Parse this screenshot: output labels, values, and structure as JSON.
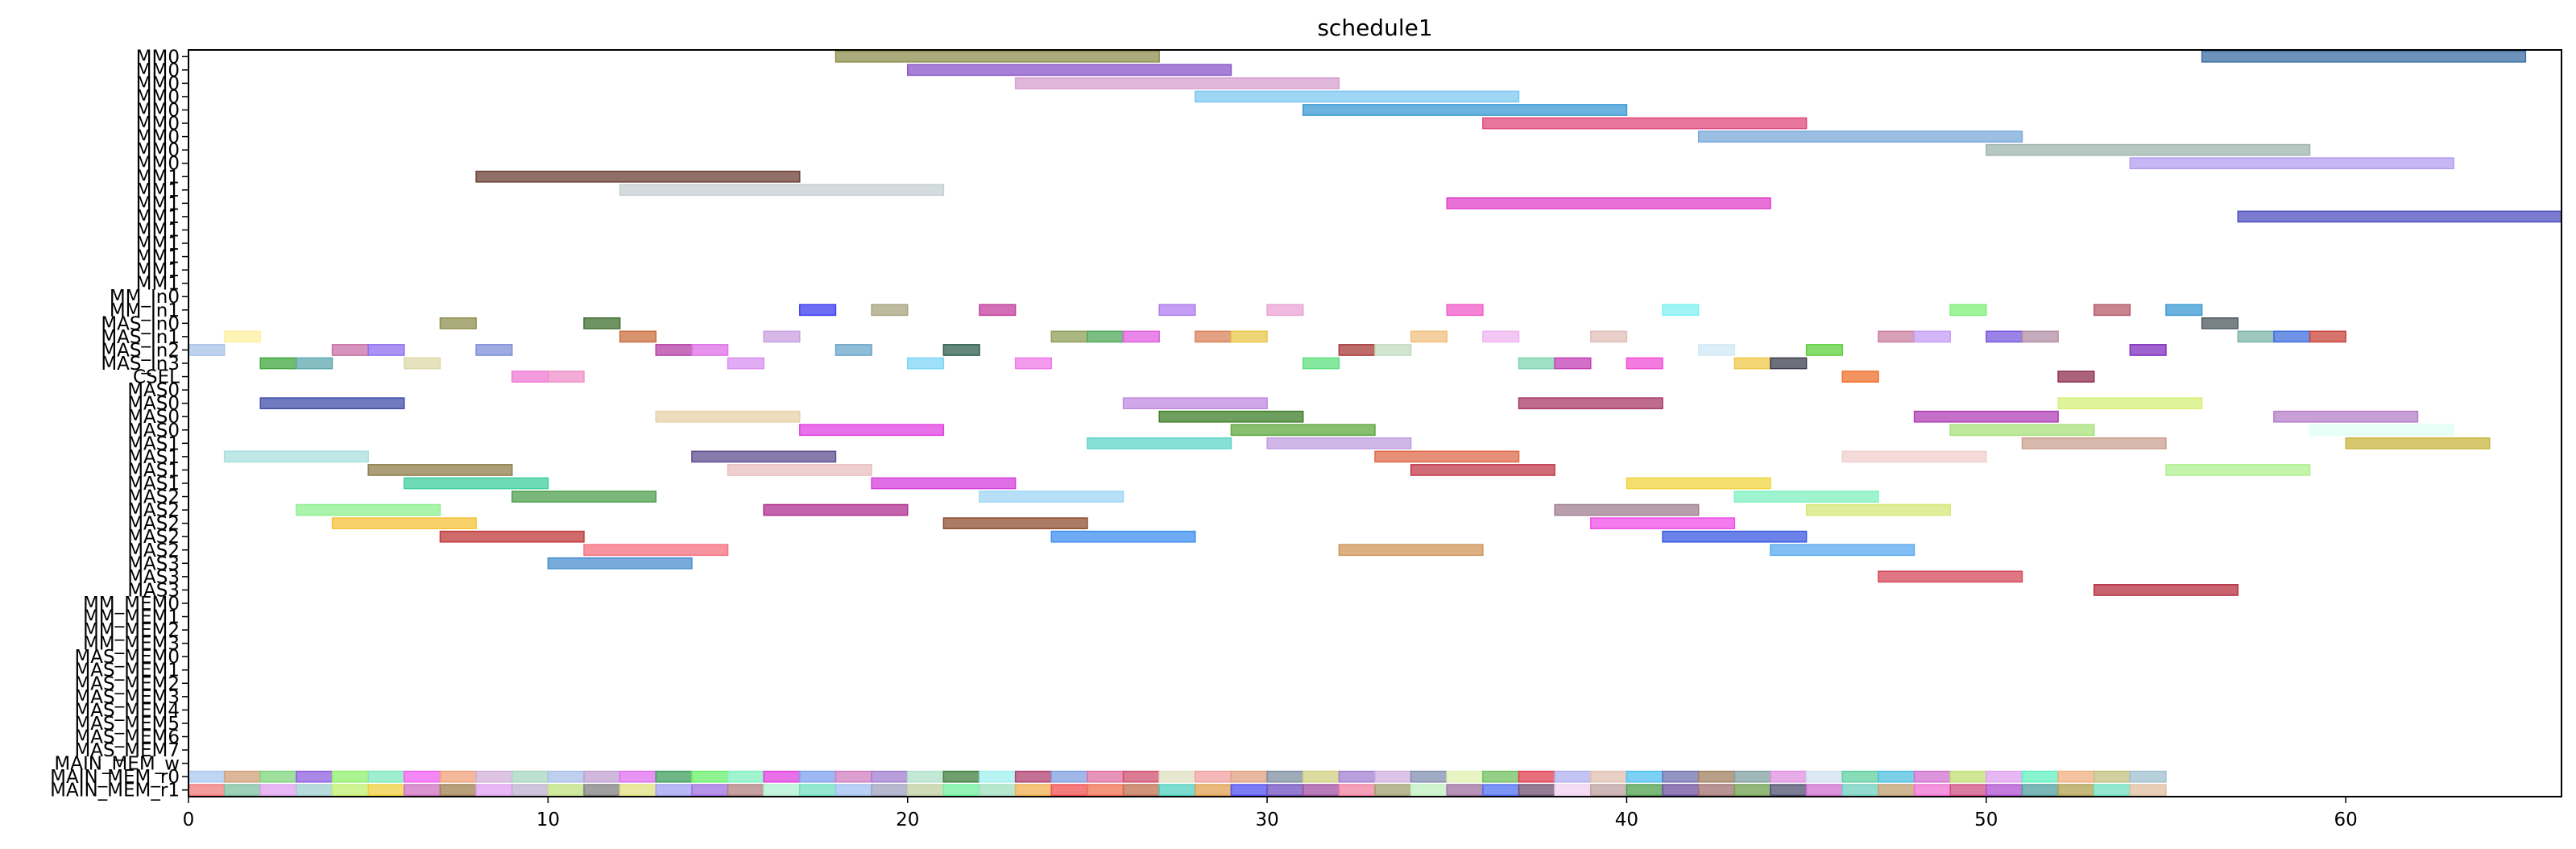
{
  "chart_data": {
    "type": "gantt",
    "title": "schedule1",
    "xlabel": "",
    "ylabel": "",
    "xlim": [
      0,
      66
    ],
    "xticks": [
      0,
      10,
      20,
      30,
      40,
      50,
      60
    ],
    "xtick_labels": [
      "0",
      "10",
      "20",
      "30",
      "40",
      "50",
      "60"
    ],
    "grid": false,
    "legend": "none",
    "rows": [
      "MM0",
      "MM0",
      "MM0",
      "MM0",
      "MM0",
      "MM0",
      "MM0",
      "MM0",
      "MM0",
      "MM1",
      "MM1",
      "MM1",
      "MM1",
      "MM1",
      "MM1",
      "MM1",
      "MM1",
      "MM1",
      "MM_In0",
      "MM_In1",
      "MAS_In0",
      "MAS_In1",
      "MAS_In2",
      "MAS_In3",
      "CSEL",
      "MAS0",
      "MAS0",
      "MAS0",
      "MAS0",
      "MAS1",
      "MAS1",
      "MAS1",
      "MAS1",
      "MAS2",
      "MAS2",
      "MAS2",
      "MAS2",
      "MAS2",
      "MAS3",
      "MAS3",
      "MAS3",
      "MM_MEM0",
      "MM_MEM1",
      "MM_MEM2",
      "MM_MEM3",
      "MAS_MEM0",
      "MAS_MEM1",
      "MAS_MEM2",
      "MAS_MEM3",
      "MAS_MEM4",
      "MAS_MEM5",
      "MAS_MEM6",
      "MAS_MEM7",
      "MAIN_MEM_w",
      "MAIN_MEM_r0",
      "MAIN_MEM_r1"
    ],
    "bars": [
      {
        "row": 0,
        "start": 18,
        "end": 27,
        "color": "#8f8f4f"
      },
      {
        "row": 0,
        "start": 56,
        "end": 65,
        "color": "#3d6fa3"
      },
      {
        "row": 1,
        "start": 20,
        "end": 29,
        "color": "#8a55c9"
      },
      {
        "row": 2,
        "start": 23,
        "end": 32,
        "color": "#d79fd0"
      },
      {
        "row": 3,
        "start": 28,
        "end": 37,
        "color": "#7ec8f0"
      },
      {
        "row": 4,
        "start": 31,
        "end": 40,
        "color": "#3a9ad3"
      },
      {
        "row": 5,
        "start": 36,
        "end": 45,
        "color": "#e04a7d"
      },
      {
        "row": 6,
        "start": 42,
        "end": 51,
        "color": "#7aa8da"
      },
      {
        "row": 7,
        "start": 50,
        "end": 59,
        "color": "#9fb5ad"
      },
      {
        "row": 8,
        "start": 54,
        "end": 63,
        "color": "#b49cf0"
      },
      {
        "row": 9,
        "start": 8,
        "end": 17,
        "color": "#6b3f35"
      },
      {
        "row": 10,
        "start": 12,
        "end": 21,
        "color": "#c5d0d3"
      },
      {
        "row": 11,
        "start": 35,
        "end": 44,
        "color": "#e040c9"
      },
      {
        "row": 12,
        "start": 57,
        "end": 66,
        "color": "#4f4fc0"
      },
      {
        "row": 19,
        "start": 17,
        "end": 18,
        "color": "#3c3cf0"
      },
      {
        "row": 19,
        "start": 19,
        "end": 20,
        "color": "#a7a37f"
      },
      {
        "row": 19,
        "start": 22,
        "end": 23,
        "color": "#c33f9f"
      },
      {
        "row": 19,
        "start": 27,
        "end": 28,
        "color": "#b07cf0"
      },
      {
        "row": 19,
        "start": 30,
        "end": 31,
        "color": "#eca3d6"
      },
      {
        "row": 19,
        "start": 35,
        "end": 36,
        "color": "#f25bc9"
      },
      {
        "row": 19,
        "start": 41,
        "end": 42,
        "color": "#7df2f0"
      },
      {
        "row": 19,
        "start": 49,
        "end": 50,
        "color": "#7ff07a"
      },
      {
        "row": 19,
        "start": 53,
        "end": 54,
        "color": "#b55a6a"
      },
      {
        "row": 19,
        "start": 55,
        "end": 56,
        "color": "#3a9ad3"
      },
      {
        "row": 20,
        "start": 7,
        "end": 8,
        "color": "#8f8f4f"
      },
      {
        "row": 20,
        "start": 11,
        "end": 12,
        "color": "#3f6f2f"
      },
      {
        "row": 20,
        "start": 56,
        "end": 57,
        "color": "#4c5a5f"
      },
      {
        "row": 21,
        "start": 1,
        "end": 2,
        "color": "#fff0a0"
      },
      {
        "row": 21,
        "start": 12,
        "end": 13,
        "color": "#c9703f"
      },
      {
        "row": 21,
        "start": 16,
        "end": 17,
        "color": "#c9a0e0"
      },
      {
        "row": 21,
        "start": 24,
        "end": 25,
        "color": "#8f9f5a"
      },
      {
        "row": 21,
        "start": 25,
        "end": 26,
        "color": "#4fa85a"
      },
      {
        "row": 21,
        "start": 26,
        "end": 27,
        "color": "#e15fe0"
      },
      {
        "row": 21,
        "start": 28,
        "end": 29,
        "color": "#d9835a"
      },
      {
        "row": 21,
        "start": 29,
        "end": 30,
        "color": "#e8c84a"
      },
      {
        "row": 21,
        "start": 34,
        "end": 35,
        "color": "#f0c080"
      },
      {
        "row": 21,
        "start": 36,
        "end": 37,
        "color": "#f0b5f0"
      },
      {
        "row": 21,
        "start": 39,
        "end": 40,
        "color": "#e0bfb8"
      },
      {
        "row": 21,
        "start": 47,
        "end": 48,
        "color": "#c9809f"
      },
      {
        "row": 21,
        "start": 48,
        "end": 49,
        "color": "#c59ff5"
      },
      {
        "row": 21,
        "start": 50,
        "end": 51,
        "color": "#7a5ae0"
      },
      {
        "row": 21,
        "start": 51,
        "end": 52,
        "color": "#b38fa5"
      },
      {
        "row": 21,
        "start": 57,
        "end": 58,
        "color": "#7fb5a8"
      },
      {
        "row": 21,
        "start": 58,
        "end": 59,
        "color": "#3f6fdf"
      },
      {
        "row": 21,
        "start": 59,
        "end": 60,
        "color": "#c8463c"
      },
      {
        "row": 22,
        "start": 0,
        "end": 1,
        "color": "#a8c3e8"
      },
      {
        "row": 22,
        "start": 4,
        "end": 5,
        "color": "#c86fa5"
      },
      {
        "row": 22,
        "start": 5,
        "end": 6,
        "color": "#8f6ff0"
      },
      {
        "row": 22,
        "start": 8,
        "end": 9,
        "color": "#7c8fd8"
      },
      {
        "row": 22,
        "start": 13,
        "end": 14,
        "color": "#b53fa5"
      },
      {
        "row": 22,
        "start": 14,
        "end": 15,
        "color": "#df6fe8"
      },
      {
        "row": 22,
        "start": 18,
        "end": 19,
        "color": "#6aa5c8"
      },
      {
        "row": 22,
        "start": 21,
        "end": 22,
        "color": "#2f5f4f"
      },
      {
        "row": 22,
        "start": 32,
        "end": 33,
        "color": "#a83a3a"
      },
      {
        "row": 22,
        "start": 33,
        "end": 34,
        "color": "#c3dcc0"
      },
      {
        "row": 22,
        "start": 42,
        "end": 43,
        "color": "#d0eaf5"
      },
      {
        "row": 22,
        "start": 45,
        "end": 46,
        "color": "#5fd03f"
      },
      {
        "row": 22,
        "start": 54,
        "end": 55,
        "color": "#7f2fc0"
      },
      {
        "row": 23,
        "start": 2,
        "end": 3,
        "color": "#3fa83f"
      },
      {
        "row": 23,
        "start": 3,
        "end": 4,
        "color": "#5fa8b0"
      },
      {
        "row": 23,
        "start": 6,
        "end": 7,
        "color": "#ddd8a8"
      },
      {
        "row": 23,
        "start": 15,
        "end": 16,
        "color": "#d890f0"
      },
      {
        "row": 23,
        "start": 20,
        "end": 21,
        "color": "#7fd5f5"
      },
      {
        "row": 23,
        "start": 23,
        "end": 24,
        "color": "#f07ae8"
      },
      {
        "row": 23,
        "start": 31,
        "end": 32,
        "color": "#5fe07f"
      },
      {
        "row": 23,
        "start": 37,
        "end": 38,
        "color": "#7fd5b0"
      },
      {
        "row": 23,
        "start": 38,
        "end": 39,
        "color": "#c33fb5"
      },
      {
        "row": 23,
        "start": 40,
        "end": 41,
        "color": "#f04fd5"
      },
      {
        "row": 23,
        "start": 43,
        "end": 44,
        "color": "#f0c84a"
      },
      {
        "row": 23,
        "start": 44,
        "end": 45,
        "color": "#3c3f4f"
      },
      {
        "row": 24,
        "start": 9,
        "end": 10,
        "color": "#f07ad5"
      },
      {
        "row": 24,
        "start": 10,
        "end": 11,
        "color": "#ef8fc9"
      },
      {
        "row": 24,
        "start": 46,
        "end": 47,
        "color": "#ef6f2a"
      },
      {
        "row": 24,
        "start": 52,
        "end": 53,
        "color": "#8f2f4f"
      },
      {
        "row": 26,
        "start": 2,
        "end": 6,
        "color": "#3f4fa8"
      },
      {
        "row": 26,
        "start": 26,
        "end": 30,
        "color": "#c08ae0"
      },
      {
        "row": 26,
        "start": 37,
        "end": 41,
        "color": "#a83a6a"
      },
      {
        "row": 26,
        "start": 52,
        "end": 56,
        "color": "#d5f07a"
      },
      {
        "row": 27,
        "start": 13,
        "end": 17,
        "color": "#e8d0a8"
      },
      {
        "row": 27,
        "start": 27,
        "end": 31,
        "color": "#3f7f2a"
      },
      {
        "row": 27,
        "start": 48,
        "end": 52,
        "color": "#b03fb5"
      },
      {
        "row": 27,
        "start": 58,
        "end": 62,
        "color": "#b57fc8"
      },
      {
        "row": 28,
        "start": 17,
        "end": 21,
        "color": "#e040e0"
      },
      {
        "row": 28,
        "start": 29,
        "end": 33,
        "color": "#5fa83f"
      },
      {
        "row": 28,
        "start": 49,
        "end": 53,
        "color": "#a8e07a"
      },
      {
        "row": 28,
        "start": 59,
        "end": 63,
        "color": "#e0fff5"
      },
      {
        "row": 29,
        "start": 25,
        "end": 29,
        "color": "#5fd5c8"
      },
      {
        "row": 29,
        "start": 30,
        "end": 34,
        "color": "#c09fe0"
      },
      {
        "row": 29,
        "start": 51,
        "end": 55,
        "color": "#c9a08f"
      },
      {
        "row": 29,
        "start": 60,
        "end": 64,
        "color": "#c9b53f"
      },
      {
        "row": 30,
        "start": 1,
        "end": 5,
        "color": "#a8e0dc"
      },
      {
        "row": 30,
        "start": 14,
        "end": 18,
        "color": "#5f4f8f"
      },
      {
        "row": 30,
        "start": 33,
        "end": 37,
        "color": "#e06a4a"
      },
      {
        "row": 30,
        "start": 46,
        "end": 50,
        "color": "#f0cfcc"
      },
      {
        "row": 31,
        "start": 5,
        "end": 9,
        "color": "#8f7f4a"
      },
      {
        "row": 31,
        "start": 15,
        "end": 19,
        "color": "#e8bfc0"
      },
      {
        "row": 31,
        "start": 34,
        "end": 38,
        "color": "#c03a4a"
      },
      {
        "row": 31,
        "start": 55,
        "end": 59,
        "color": "#b0f08f"
      },
      {
        "row": 32,
        "start": 6,
        "end": 10,
        "color": "#3fcf9f"
      },
      {
        "row": 32,
        "start": 19,
        "end": 23,
        "color": "#d53fdc"
      },
      {
        "row": 32,
        "start": 40,
        "end": 44,
        "color": "#f0d53f"
      },
      {
        "row": 33,
        "start": 9,
        "end": 13,
        "color": "#4f9f4f"
      },
      {
        "row": 33,
        "start": 22,
        "end": 26,
        "color": "#9fd5f5"
      },
      {
        "row": 33,
        "start": 43,
        "end": 47,
        "color": "#7ff0c0"
      },
      {
        "row": 34,
        "start": 3,
        "end": 7,
        "color": "#8ff08f"
      },
      {
        "row": 34,
        "start": 16,
        "end": 20,
        "color": "#b02f8f"
      },
      {
        "row": 34,
        "start": 38,
        "end": 42,
        "color": "#a07f8f"
      },
      {
        "row": 34,
        "start": 45,
        "end": 49,
        "color": "#d5e87a"
      },
      {
        "row": 35,
        "start": 4,
        "end": 8,
        "color": "#f5c23a"
      },
      {
        "row": 35,
        "start": 21,
        "end": 25,
        "color": "#8f4f2f"
      },
      {
        "row": 35,
        "start": 39,
        "end": 43,
        "color": "#f04fe8"
      },
      {
        "row": 36,
        "start": 7,
        "end": 11,
        "color": "#c03a3a"
      },
      {
        "row": 36,
        "start": 24,
        "end": 28,
        "color": "#3f8ff0"
      },
      {
        "row": 36,
        "start": 41,
        "end": 45,
        "color": "#3a5ae0"
      },
      {
        "row": 37,
        "start": 11,
        "end": 15,
        "color": "#f5707f"
      },
      {
        "row": 37,
        "start": 32,
        "end": 36,
        "color": "#d0955a"
      },
      {
        "row": 37,
        "start": 44,
        "end": 48,
        "color": "#5aaaf0"
      },
      {
        "row": 38,
        "start": 10,
        "end": 14,
        "color": "#4a8fd0"
      },
      {
        "row": 39,
        "start": 47,
        "end": 51,
        "color": "#d54a5a"
      },
      {
        "row": 40,
        "start": 53,
        "end": 57,
        "color": "#b52f3f"
      }
    ],
    "main_mem_rows": [
      {
        "row": 54,
        "start": 0,
        "colors": [
          "#a8c8f0",
          "#d0a07a",
          "#7fd57f",
          "#8f5fe0",
          "#8ff06a",
          "#7fe8c0",
          "#f060f0",
          "#f0a07a",
          "#d0b0d8",
          "#a8d5c0",
          "#a8c0e8",
          "#c0a0d0",
          "#e070f0",
          "#3f9f5f",
          "#6af06a",
          "#80f0c0",
          "#e040e0",
          "#7fa0f0",
          "#d07fc0",
          "#a07fd0",
          "#b0e0c8",
          "#3f7f3f",
          "#a0f0f0",
          "#b04070",
          "#7fa0e0",
          "#e070a0",
          "#d05070",
          "#e0e0c0",
          "#f0a0a0",
          "#e0a080",
          "#7f8fa0",
          "#d0d080",
          "#a080d0",
          "#d0b0e0",
          "#8090b0",
          "#e0f0b0",
          "#70c060",
          "#e04050",
          "#b0b0f0",
          "#e0c0b0",
          "#50c0f0",
          "#7070b0",
          "#a08060",
          "#80a0a0",
          "#e090e0",
          "#d0e0f0",
          "#60d0a0",
          "#50c0e0",
          "#d070d0",
          "#c0e070",
          "#e0a0f0",
          "#60f0c0",
          "#f0b080",
          "#c0c080",
          "#a0c0d0"
        ]
      },
      {
        "row": 55,
        "start": 0,
        "colors": [
          "#f07a7a",
          "#7fc0a0",
          "#e0a0f0",
          "#a0d0d0",
          "#c0f070",
          "#f0d040",
          "#d070c0",
          "#a08050",
          "#e0a0f0",
          "#c0b0d0",
          "#c0e080",
          "#808080",
          "#e0e080",
          "#a0a0f0",
          "#a070e0",
          "#b08080",
          "#b0f0d0",
          "#70e0c0",
          "#a0c0f0",
          "#a0a0c0",
          "#c0d0a0",
          "#70f0a0",
          "#a0e0c0",
          "#f0b050",
          "#f05050",
          "#f07050",
          "#c07050",
          "#50d0c0",
          "#e0a050",
          "#5050f0",
          "#7050c0",
          "#a050a0",
          "#f080a0",
          "#a0a070",
          "#c0f0c0",
          "#a070a0",
          "#5070f0",
          "#705070",
          "#f0d0f0",
          "#c0a0a0",
          "#50a050",
          "#7050a0",
          "#a07070",
          "#70a050",
          "#505070",
          "#d070d0",
          "#70d0c0",
          "#c0a070",
          "#f070d0",
          "#d05080",
          "#b050d0",
          "#50a0a0",
          "#b0a050",
          "#70e0c0",
          "#e0c0a0"
        ]
      }
    ]
  }
}
